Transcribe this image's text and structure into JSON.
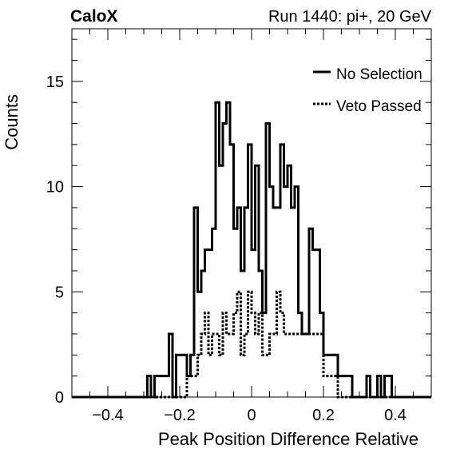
{
  "chart_data": {
    "type": "histogram",
    "title_left": "CaloX",
    "title_right": "Run 1440: pi+, 20 GeV",
    "xlabel": "Peak Position Difference Relative",
    "ylabel": "Counts",
    "xlim": [
      -0.5,
      0.5
    ],
    "ylim": [
      0,
      17.5
    ],
    "x_ticks": [
      -0.4,
      -0.2,
      0,
      0.2,
      0.4
    ],
    "x_tick_labels": [
      "−0.4",
      "−0.2",
      "0",
      "0.2",
      "0.4"
    ],
    "y_ticks": [
      0,
      5,
      10,
      15
    ],
    "y_tick_labels": [
      "0",
      "5",
      "10",
      "15"
    ],
    "legend_position": "top-right",
    "bin_edges_start": -0.5,
    "bin_width": 0.01,
    "series": [
      {
        "name": "No Selection",
        "style": "solid",
        "color": "#000000",
        "counts": [
          0,
          0,
          0,
          0,
          0,
          0,
          0,
          0,
          0,
          0,
          0,
          0,
          0,
          0,
          0,
          0,
          0,
          0,
          0,
          0,
          0,
          1,
          0,
          1,
          1,
          1,
          1,
          3,
          0,
          2,
          2,
          2,
          1,
          2,
          9,
          5,
          6,
          7,
          7,
          8,
          14,
          11,
          13,
          14,
          12,
          8,
          9,
          6,
          9,
          12,
          7,
          11,
          6,
          4,
          13,
          10,
          9,
          9,
          12,
          10,
          11,
          9,
          10,
          4,
          3,
          3,
          8,
          7,
          7,
          4,
          2,
          2,
          2,
          2,
          1,
          1,
          1,
          1,
          0,
          0,
          0,
          0,
          1,
          0,
          0,
          1,
          0,
          1,
          1,
          0,
          0,
          0,
          0,
          0,
          0,
          0,
          0,
          0,
          0,
          0
        ]
      },
      {
        "name": "Veto Passed",
        "style": "dashed",
        "color": "#000000",
        "counts": [
          0,
          0,
          0,
          0,
          0,
          0,
          0,
          0,
          0,
          0,
          0,
          0,
          0,
          0,
          0,
          0,
          0,
          0,
          0,
          0,
          0,
          0,
          0,
          0,
          0,
          0,
          0,
          0,
          0,
          0,
          0,
          0,
          1,
          1,
          1,
          2,
          3,
          4,
          2,
          3,
          3,
          2,
          4,
          3,
          3,
          4,
          5,
          2,
          3,
          5,
          4,
          3,
          4,
          2,
          2,
          3,
          3,
          5,
          4,
          3,
          3,
          3,
          3,
          3,
          3,
          3,
          3,
          3,
          3,
          3,
          1,
          1,
          1,
          1,
          0,
          0,
          0,
          0,
          0,
          0,
          0,
          0,
          0,
          0,
          0,
          0,
          0,
          0,
          0,
          0,
          0,
          0,
          0,
          0,
          0,
          0,
          0,
          0,
          0,
          0
        ]
      }
    ]
  }
}
